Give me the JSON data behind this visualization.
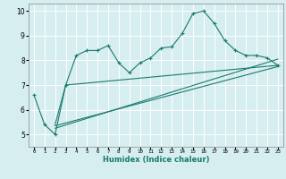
{
  "xlabel": "Humidex (Indice chaleur)",
  "ylabel": "",
  "bg_color": "#d6eef0",
  "grid_color": "#ffffff",
  "line_color": "#1a7a6e",
  "xlim": [
    -0.5,
    23.5
  ],
  "ylim": [
    4.5,
    10.3
  ],
  "xticks": [
    0,
    1,
    2,
    3,
    4,
    5,
    6,
    7,
    8,
    9,
    10,
    11,
    12,
    13,
    14,
    15,
    16,
    17,
    18,
    19,
    20,
    21,
    22,
    23
  ],
  "yticks": [
    5,
    6,
    7,
    8,
    9,
    10
  ],
  "series1_x": [
    0,
    1,
    2,
    3,
    4,
    5,
    6,
    7,
    8,
    9,
    10,
    11,
    12,
    13,
    14,
    15,
    16,
    17,
    18,
    19,
    20,
    21,
    22,
    23
  ],
  "series1_y": [
    6.6,
    5.4,
    5.0,
    7.0,
    8.2,
    8.4,
    8.4,
    8.6,
    7.9,
    7.5,
    7.9,
    8.1,
    8.5,
    8.55,
    9.1,
    9.9,
    10.0,
    9.5,
    8.8,
    8.4,
    8.2,
    8.2,
    8.1,
    7.8
  ],
  "series2_x": [
    2,
    3,
    23
  ],
  "series2_y": [
    5.4,
    7.0,
    7.8
  ],
  "series3_x": [
    2,
    23
  ],
  "series3_y": [
    5.35,
    7.75
  ],
  "series4_x": [
    2,
    23
  ],
  "series4_y": [
    5.25,
    8.05
  ]
}
